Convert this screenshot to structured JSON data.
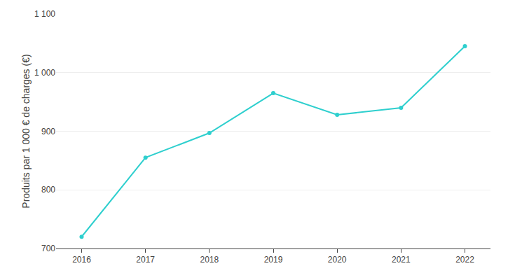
{
  "chart_data": {
    "type": "line",
    "x": [
      2016,
      2017,
      2018,
      2019,
      2020,
      2021,
      2022
    ],
    "values": [
      720,
      855,
      897,
      965,
      928,
      940,
      1045
    ],
    "color": "#2ecfce",
    "marker": "circle",
    "ylabel": "Produits par 1 000 € de charges (€)",
    "xlim": [
      2015.6,
      2022.4
    ],
    "xticks": [
      2016,
      2017,
      2018,
      2019,
      2020,
      2021,
      2022
    ],
    "ylim": [
      700,
      1100
    ],
    "yticks": [
      700,
      800,
      900,
      {
        "value": 1000,
        "label": "1 000"
      },
      {
        "value": 1100,
        "label": "1 100"
      }
    ],
    "grid": "y"
  }
}
